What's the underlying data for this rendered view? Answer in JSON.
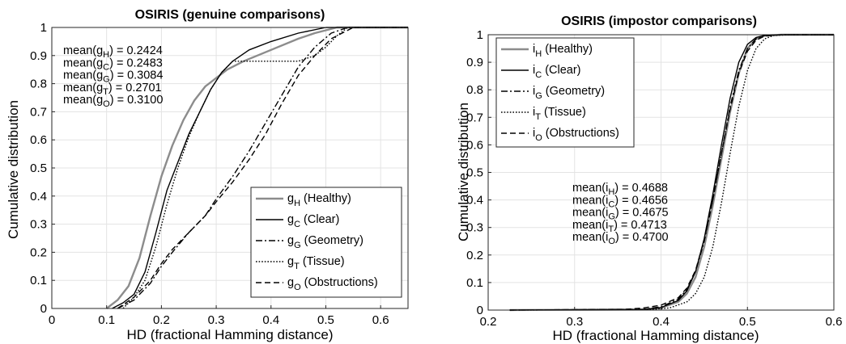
{
  "chart_data": [
    {
      "type": "line",
      "title": "OSIRIS (genuine comparisons)",
      "xlabel": "HD (fractional Hamming distance)",
      "ylabel": "Cumulative distribution",
      "xlim": [
        0,
        0.65
      ],
      "ylim": [
        0,
        1
      ],
      "xticks": [
        0,
        0.1,
        0.2,
        0.3,
        0.4,
        0.5,
        0.6
      ],
      "xtick_labels": [
        "0",
        "0.1",
        "0.2",
        "0.3",
        "0.4",
        "0.5",
        "0.6"
      ],
      "yticks": [
        0,
        0.1,
        0.2,
        0.3,
        0.4,
        0.5,
        0.6,
        0.7,
        0.8,
        0.9,
        1
      ],
      "ytick_labels": [
        "0",
        "0.1",
        "0.2",
        "0.3",
        "0.4",
        "0.5",
        "0.6",
        "0.7",
        "0.8",
        "0.9",
        "1"
      ],
      "grid": true,
      "legend_position": "bottom-right",
      "series": [
        {
          "name": "gH (Healthy)",
          "var": "g",
          "sub": "H",
          "label": "(Healthy)",
          "color": "#8c8c8c",
          "dash": "solid",
          "x": [
            0.1,
            0.12,
            0.14,
            0.16,
            0.18,
            0.2,
            0.22,
            0.24,
            0.26,
            0.28,
            0.3,
            0.32,
            0.35,
            0.4,
            0.45,
            0.48,
            0.5,
            0.52,
            0.65
          ],
          "y": [
            0.0,
            0.03,
            0.08,
            0.18,
            0.33,
            0.47,
            0.58,
            0.67,
            0.74,
            0.79,
            0.82,
            0.85,
            0.88,
            0.92,
            0.96,
            0.98,
            0.99,
            1.0,
            1.0
          ]
        },
        {
          "name": "gC (Clear)",
          "var": "g",
          "sub": "C",
          "label": "(Clear)",
          "color": "#000000",
          "dash": "solid",
          "x": [
            0.11,
            0.13,
            0.15,
            0.17,
            0.19,
            0.21,
            0.23,
            0.25,
            0.27,
            0.29,
            0.31,
            0.33,
            0.36,
            0.4,
            0.45,
            0.5,
            0.53,
            0.65
          ],
          "y": [
            0.0,
            0.02,
            0.05,
            0.13,
            0.27,
            0.42,
            0.52,
            0.62,
            0.7,
            0.78,
            0.84,
            0.88,
            0.92,
            0.95,
            0.98,
            1.0,
            1.0,
            1.0
          ]
        },
        {
          "name": "gG (Geometry)",
          "var": "g",
          "sub": "G",
          "label": "(Geometry)",
          "color": "#000000",
          "dash": "dashdot",
          "x": [
            0.12,
            0.15,
            0.18,
            0.2,
            0.22,
            0.25,
            0.28,
            0.3,
            0.33,
            0.36,
            0.39,
            0.42,
            0.45,
            0.48,
            0.51,
            0.54,
            0.65
          ],
          "y": [
            0.0,
            0.03,
            0.09,
            0.15,
            0.2,
            0.27,
            0.33,
            0.39,
            0.47,
            0.56,
            0.66,
            0.76,
            0.86,
            0.93,
            0.98,
            1.0,
            1.0
          ]
        },
        {
          "name": "gT (Tissue)",
          "var": "g",
          "sub": "T",
          "label": "(Tissue)",
          "color": "#000000",
          "dash": "dot",
          "x": [
            0.13,
            0.15,
            0.17,
            0.19,
            0.21,
            0.23,
            0.25,
            0.27,
            0.29,
            0.31,
            0.33,
            0.36,
            0.4,
            0.45,
            0.48,
            0.5,
            0.52,
            0.54,
            0.65
          ],
          "y": [
            0.0,
            0.04,
            0.1,
            0.22,
            0.37,
            0.5,
            0.61,
            0.7,
            0.78,
            0.84,
            0.88,
            0.88,
            0.88,
            0.88,
            0.9,
            0.93,
            0.97,
            1.0,
            1.0
          ]
        },
        {
          "name": "gO (Obstructions)",
          "var": "g",
          "sub": "O",
          "label": "(Obstructions)",
          "color": "#000000",
          "dash": "dash",
          "x": [
            0.12,
            0.15,
            0.18,
            0.2,
            0.22,
            0.25,
            0.28,
            0.3,
            0.33,
            0.36,
            0.39,
            0.42,
            0.45,
            0.48,
            0.51,
            0.55,
            0.65
          ],
          "y": [
            0.0,
            0.04,
            0.1,
            0.16,
            0.21,
            0.27,
            0.33,
            0.38,
            0.45,
            0.53,
            0.62,
            0.73,
            0.83,
            0.9,
            0.96,
            1.0,
            1.0
          ]
        }
      ],
      "annotations": [
        {
          "var": "g",
          "sub": "H",
          "value": "0.2424"
        },
        {
          "var": "g",
          "sub": "C",
          "value": "0.2483"
        },
        {
          "var": "g",
          "sub": "G",
          "value": "0.3084"
        },
        {
          "var": "g",
          "sub": "T",
          "value": "0.2701"
        },
        {
          "var": "g",
          "sub": "O",
          "value": "0.3100"
        }
      ]
    },
    {
      "type": "line",
      "title": "OSIRIS (impostor comparisons)",
      "xlabel": "HD (fractional Hamming distance)",
      "ylabel": "Cumulative distribution",
      "xlim": [
        0.2,
        0.6
      ],
      "ylim": [
        0,
        1
      ],
      "xticks": [
        0.2,
        0.3,
        0.4,
        0.5,
        0.6
      ],
      "xtick_labels": [
        "0.2",
        "0.3",
        "0.4",
        "0.5",
        "0.6"
      ],
      "yticks": [
        0,
        0.1,
        0.2,
        0.3,
        0.4,
        0.5,
        0.6,
        0.7,
        0.8,
        0.9,
        1
      ],
      "ytick_labels": [
        "0",
        "0.1",
        "0.2",
        "0.3",
        "0.4",
        "0.5",
        "0.6",
        "0.7",
        "0.8",
        "0.9",
        "1"
      ],
      "grid": true,
      "legend_position": "top-left",
      "series": [
        {
          "name": "iH (Healthy)",
          "var": "i",
          "sub": "H",
          "label": "(Healthy)",
          "color": "#8c8c8c",
          "dash": "solid",
          "x": [
            0.225,
            0.38,
            0.4,
            0.42,
            0.43,
            0.44,
            0.45,
            0.46,
            0.47,
            0.48,
            0.49,
            0.5,
            0.51,
            0.52,
            0.54,
            0.6
          ],
          "y": [
            0.0,
            0.002,
            0.008,
            0.03,
            0.06,
            0.12,
            0.23,
            0.38,
            0.55,
            0.72,
            0.86,
            0.95,
            0.985,
            0.997,
            1.0,
            1.0
          ]
        },
        {
          "name": "iC (Clear)",
          "var": "i",
          "sub": "C",
          "label": "(Clear)",
          "color": "#000000",
          "dash": "solid",
          "x": [
            0.225,
            0.38,
            0.4,
            0.42,
            0.43,
            0.44,
            0.45,
            0.46,
            0.47,
            0.48,
            0.49,
            0.5,
            0.51,
            0.52,
            0.54,
            0.6
          ],
          "y": [
            0.0,
            0.002,
            0.009,
            0.035,
            0.07,
            0.14,
            0.26,
            0.42,
            0.6,
            0.77,
            0.9,
            0.965,
            0.99,
            0.998,
            1.0,
            1.0
          ]
        },
        {
          "name": "iG (Geometry)",
          "var": "i",
          "sub": "G",
          "label": "(Geometry)",
          "color": "#000000",
          "dash": "dashdot",
          "x": [
            0.225,
            0.38,
            0.4,
            0.42,
            0.43,
            0.44,
            0.45,
            0.46,
            0.47,
            0.48,
            0.49,
            0.5,
            0.51,
            0.52,
            0.54,
            0.6
          ],
          "y": [
            0.0,
            0.003,
            0.012,
            0.04,
            0.075,
            0.14,
            0.25,
            0.4,
            0.57,
            0.74,
            0.87,
            0.95,
            0.985,
            0.997,
            1.0,
            1.0
          ]
        },
        {
          "name": "iT (Tissue)",
          "var": "i",
          "sub": "T",
          "label": "(Tissue)",
          "color": "#000000",
          "dash": "dot",
          "x": [
            0.225,
            0.39,
            0.41,
            0.43,
            0.44,
            0.45,
            0.46,
            0.47,
            0.48,
            0.49,
            0.5,
            0.51,
            0.52,
            0.53,
            0.55,
            0.6
          ],
          "y": [
            0.0,
            0.002,
            0.008,
            0.03,
            0.06,
            0.12,
            0.23,
            0.39,
            0.57,
            0.74,
            0.87,
            0.95,
            0.985,
            0.997,
            1.0,
            1.0
          ]
        },
        {
          "name": "iO (Obstructions)",
          "var": "i",
          "sub": "O",
          "label": "(Obstructions)",
          "color": "#000000",
          "dash": "dash",
          "x": [
            0.225,
            0.36,
            0.38,
            0.4,
            0.42,
            0.43,
            0.44,
            0.45,
            0.46,
            0.47,
            0.48,
            0.49,
            0.5,
            0.51,
            0.52,
            0.54,
            0.6
          ],
          "y": [
            0.0,
            0.003,
            0.008,
            0.018,
            0.045,
            0.08,
            0.145,
            0.255,
            0.4,
            0.57,
            0.73,
            0.86,
            0.94,
            0.98,
            0.995,
            1.0,
            1.0
          ]
        }
      ],
      "annotations": [
        {
          "var": "i",
          "sub": "H",
          "value": "0.4688"
        },
        {
          "var": "i",
          "sub": "C",
          "value": "0.4656"
        },
        {
          "var": "i",
          "sub": "G",
          "value": "0.4675"
        },
        {
          "var": "i",
          "sub": "T",
          "value": "0.4713"
        },
        {
          "var": "i",
          "sub": "O",
          "value": "0.4700"
        }
      ]
    }
  ]
}
